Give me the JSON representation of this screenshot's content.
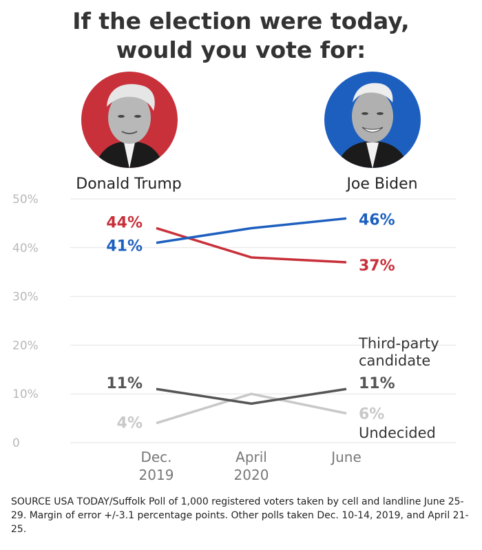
{
  "title": {
    "line1": "If the election were today,",
    "line2": "would you vote for:"
  },
  "candidates": [
    {
      "name": "Donald Trump",
      "icon": "trump-portrait-icon",
      "color": "#c8303a"
    },
    {
      "name": "Joe Biden",
      "icon": "biden-portrait-icon",
      "color": "#1d5fbf"
    }
  ],
  "chart_data": {
    "type": "line",
    "categories": [
      "Dec. 2019",
      "April 2020",
      "June"
    ],
    "category_lines": [
      [
        "Dec.",
        "2019"
      ],
      [
        "April",
        "2020"
      ],
      [
        "June"
      ]
    ],
    "ylim": [
      0,
      50
    ],
    "yticks": [
      0,
      10,
      20,
      30,
      40,
      50
    ],
    "ytick_labels": [
      "0",
      "10%",
      "20%",
      "30%",
      "40%",
      "50%"
    ],
    "grid": true,
    "series": [
      {
        "name": "Joe Biden",
        "values": [
          41,
          44,
          46
        ],
        "color": "#1d5fbf",
        "labels": [
          "41%",
          null,
          "46%"
        ]
      },
      {
        "name": "Donald Trump",
        "values": [
          44,
          38,
          37
        ],
        "color": "#c8303a",
        "labels": [
          "44%",
          null,
          "37%"
        ]
      },
      {
        "name": "Third-party candidate",
        "values": [
          11,
          8,
          11
        ],
        "color": "#555555",
        "labels": [
          "11%",
          null,
          "11%"
        ],
        "legend_lines": [
          "Third-party",
          "candidate"
        ]
      },
      {
        "name": "Undecided",
        "values": [
          4,
          10,
          6
        ],
        "color": "#c8c8c8",
        "labels": [
          "4%",
          null,
          "6%"
        ],
        "legend_lines": [
          "Undecided"
        ]
      }
    ]
  },
  "source": "SOURCE USA TODAY/Suffolk Poll of 1,000 registered voters taken by cell and landline June 25-29. Margin of error +/-3.1 percentage points. Other polls taken Dec. 10-14, 2019, and April 21-25."
}
